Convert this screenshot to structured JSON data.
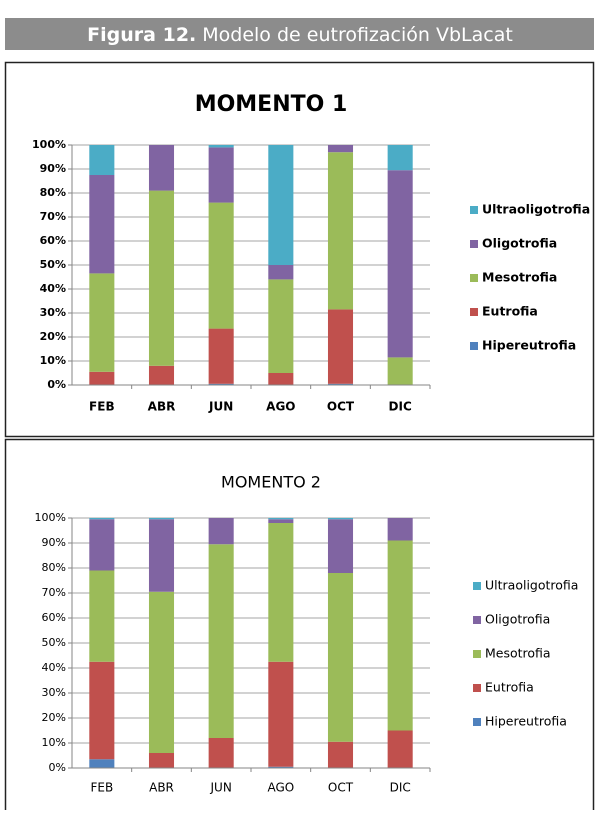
{
  "header": {
    "label": "Figura 12.",
    "title": "Modelo de eutrofización VbLacat"
  },
  "chart_data": [
    {
      "type": "bar",
      "stacked": true,
      "font_weight": "bold",
      "title": "MOMENTO 1",
      "categories": [
        "FEB",
        "ABR",
        "JUN",
        "AGO",
        "OCT",
        "DIC"
      ],
      "series": [
        {
          "name": "Hipereutrofia",
          "color": "#4f81bd",
          "values": [
            0,
            0,
            0.5,
            0,
            0.5,
            0
          ]
        },
        {
          "name": "Eutrofia",
          "color": "#c0504d",
          "values": [
            5.5,
            8,
            23,
            5,
            31,
            0
          ]
        },
        {
          "name": "Mesotrofia",
          "color": "#9bbb59",
          "values": [
            41,
            73,
            52.5,
            39,
            65.5,
            11.5
          ]
        },
        {
          "name": "Oligotrofia",
          "color": "#8064a2",
          "values": [
            41,
            19,
            23,
            6,
            3,
            78
          ]
        },
        {
          "name": "Ultraoligotrofia",
          "color": "#4bacc6",
          "values": [
            12.5,
            0,
            1,
            50,
            0,
            10.5
          ]
        }
      ],
      "ylim": [
        0,
        100
      ],
      "yticks": [
        {
          "value": 0,
          "label": "0%"
        },
        {
          "value": 10,
          "label": "10%"
        },
        {
          "value": 20,
          "label": "20%"
        },
        {
          "value": 30,
          "label": "30%"
        },
        {
          "value": 40,
          "label": "40%"
        },
        {
          "value": 50,
          "label": "50%"
        },
        {
          "value": 60,
          "label": "60%"
        },
        {
          "value": 70,
          "label": "70%"
        },
        {
          "value": 80,
          "label": "80%"
        },
        {
          "value": 90,
          "label": "90%"
        },
        {
          "value": 100,
          "label": "100%"
        }
      ],
      "grid": true,
      "legend": "right"
    },
    {
      "type": "bar",
      "stacked": true,
      "font_weight": "normal",
      "title": "MOMENTO 2",
      "categories": [
        "FEB",
        "ABR",
        "JUN",
        "AGO",
        "OCT",
        "DIC"
      ],
      "series": [
        {
          "name": "Hipereutrofia",
          "color": "#4f81bd",
          "values": [
            3.5,
            0,
            0,
            0.5,
            0,
            0
          ]
        },
        {
          "name": "Eutrofia",
          "color": "#c0504d",
          "values": [
            39,
            6,
            12,
            42,
            10.5,
            15
          ]
        },
        {
          "name": "Mesotrofia",
          "color": "#9bbb59",
          "values": [
            36.5,
            64.5,
            77.5,
            55.5,
            67.5,
            76
          ]
        },
        {
          "name": "Oligotrofia",
          "color": "#8064a2",
          "values": [
            20.5,
            29,
            10.5,
            1.5,
            21.5,
            9
          ]
        },
        {
          "name": "Ultraoligotrofia",
          "color": "#4bacc6",
          "values": [
            0.5,
            0.5,
            0,
            0.5,
            0.5,
            0
          ]
        }
      ],
      "ylim": [
        0,
        100
      ],
      "yticks": [
        {
          "value": 0,
          "label": "0%"
        },
        {
          "value": 10,
          "label": "10%"
        },
        {
          "value": 20,
          "label": "20%"
        },
        {
          "value": 30,
          "label": "30%"
        },
        {
          "value": 40,
          "label": "40%"
        },
        {
          "value": 50,
          "label": "50%"
        },
        {
          "value": 60,
          "label": "60%"
        },
        {
          "value": 70,
          "label": "70%"
        },
        {
          "value": 80,
          "label": "80%"
        },
        {
          "value": 90,
          "label": "90%"
        },
        {
          "value": 100,
          "label": "100%"
        }
      ],
      "grid": true,
      "legend": "right"
    }
  ]
}
